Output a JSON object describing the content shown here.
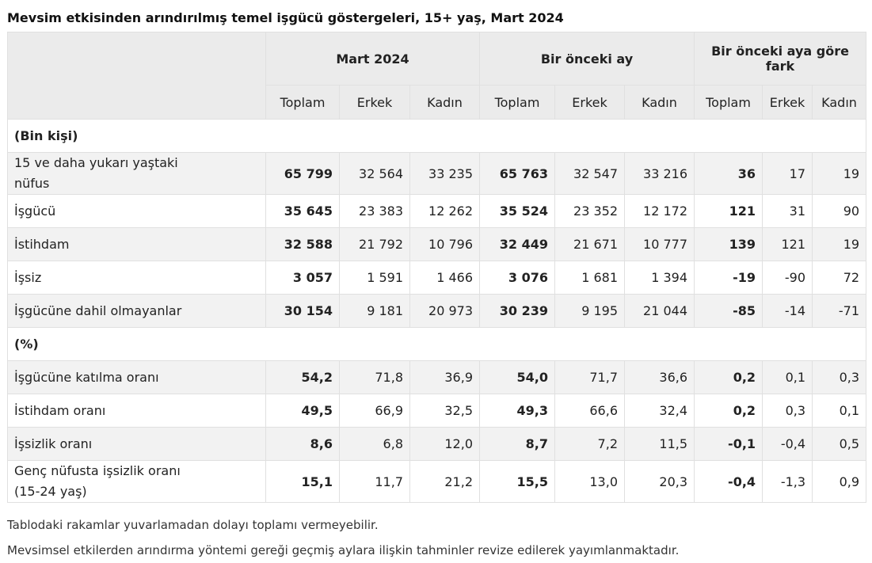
{
  "title": "Mevsim etkisinden arındırılmış temel işgücü göstergeleri, 15+ yaş, Mart 2024",
  "table": {
    "groups": [
      "Mart 2024",
      "Bir önceki ay",
      "Bir önceki aya göre fark"
    ],
    "columns": [
      "Toplam",
      "Erkek",
      "Kadın",
      "Toplam",
      "Erkek",
      "Kadın",
      "Toplam",
      "Erkek",
      "Kadın"
    ],
    "sections": [
      {
        "heading": "(Bin kişi)",
        "rows": [
          {
            "label": "15 ve daha yukarı yaştaki nüfus",
            "values": [
              "65 799",
              "32 564",
              "33 235",
              "65 763",
              "32 547",
              "33 216",
              "36",
              "17",
              "19"
            ]
          },
          {
            "label": "İşgücü",
            "values": [
              "35 645",
              "23 383",
              "12 262",
              "35 524",
              "23 352",
              "12 172",
              "121",
              "31",
              "90"
            ]
          },
          {
            "label": "İstihdam",
            "values": [
              "32 588",
              "21 792",
              "10 796",
              "32 449",
              "21 671",
              "10 777",
              "139",
              "121",
              "19"
            ]
          },
          {
            "label": "İşsiz",
            "values": [
              "3 057",
              "1 591",
              "1 466",
              "3 076",
              "1 681",
              "1 394",
              "-19",
              "-90",
              "72"
            ]
          },
          {
            "label": "İşgücüne dahil olmayanlar",
            "values": [
              "30 154",
              "9 181",
              "20 973",
              "30 239",
              "9 195",
              "21 044",
              "-85",
              "-14",
              "-71"
            ]
          }
        ]
      },
      {
        "heading": "(%)",
        "rows": [
          {
            "label": "İşgücüne katılma oranı",
            "values": [
              "54,2",
              "71,8",
              "36,9",
              "54,0",
              "71,7",
              "36,6",
              "0,2",
              "0,1",
              "0,3"
            ]
          },
          {
            "label": "İstihdam oranı",
            "values": [
              "49,5",
              "66,9",
              "32,5",
              "49,3",
              "66,6",
              "32,4",
              "0,2",
              "0,3",
              "0,1"
            ]
          },
          {
            "label": "İşsizlik oranı",
            "values": [
              "8,6",
              "6,8",
              "12,0",
              "8,7",
              "7,2",
              "11,5",
              "-0,1",
              "-0,4",
              "0,5"
            ]
          },
          {
            "label": "Genç nüfusta işsizlik oranı (15-24 yaş)",
            "values": [
              "15,1",
              "11,7",
              "21,2",
              "15,5",
              "13,0",
              "20,3",
              "-0,4",
              "-1,3",
              "0,9"
            ]
          }
        ]
      }
    ]
  },
  "notes": [
    "Tablodaki rakamlar yuvarlamadan dolayı toplamı vermeyebilir.",
    "Mevsimsel etkilerden arındırma yöntemi gereği geçmiş aylara ilişkin tahminler revize edilerek yayımlanmaktadır."
  ]
}
